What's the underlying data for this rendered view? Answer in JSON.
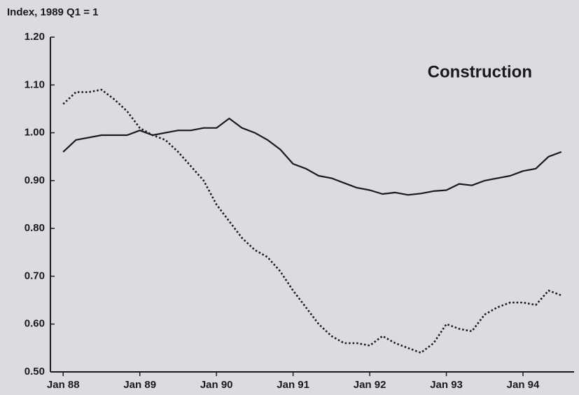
{
  "chart_data": {
    "type": "line",
    "annotation": "Construction",
    "ylabel": "Index, 1989 Q1 = 1",
    "x": [
      "1988-01",
      "1988-03",
      "1988-05",
      "1988-07",
      "1988-09",
      "1988-11",
      "1989-01",
      "1989-03",
      "1989-05",
      "1989-07",
      "1989-09",
      "1989-11",
      "1990-01",
      "1990-03",
      "1990-05",
      "1990-07",
      "1990-09",
      "1990-11",
      "1991-01",
      "1991-03",
      "1991-05",
      "1991-07",
      "1991-09",
      "1991-11",
      "1992-01",
      "1992-03",
      "1992-05",
      "1992-07",
      "1992-09",
      "1992-11",
      "1993-01",
      "1993-03",
      "1993-05",
      "1993-07",
      "1993-09",
      "1993-11",
      "1994-01",
      "1994-03",
      "1994-05",
      "1994-07"
    ],
    "series": [
      {
        "color": "#1a1a1a",
        "dash": "solid",
        "values": [
          0.96,
          0.985,
          0.99,
          0.995,
          0.995,
          0.995,
          1.005,
          0.995,
          1.0,
          1.005,
          1.005,
          1.01,
          1.01,
          1.03,
          1.01,
          1.0,
          0.985,
          0.965,
          0.935,
          0.925,
          0.91,
          0.905,
          0.895,
          0.885,
          0.88,
          0.872,
          0.875,
          0.87,
          0.873,
          0.878,
          0.88,
          0.893,
          0.89,
          0.9,
          0.905,
          0.91,
          0.92,
          0.925,
          0.95,
          0.96
        ]
      },
      {
        "color": "#1a1a1a",
        "dash": "dotted",
        "values": [
          1.06,
          1.085,
          1.085,
          1.09,
          1.07,
          1.045,
          1.01,
          0.995,
          0.985,
          0.96,
          0.93,
          0.9,
          0.85,
          0.815,
          0.78,
          0.755,
          0.74,
          0.71,
          0.67,
          0.635,
          0.6,
          0.575,
          0.56,
          0.56,
          0.555,
          0.575,
          0.56,
          0.55,
          0.54,
          0.56,
          0.6,
          0.59,
          0.585,
          0.62,
          0.635,
          0.645,
          0.645,
          0.64,
          0.67,
          0.66
        ]
      }
    ],
    "xlim": [
      "1987-11",
      "1994-09"
    ],
    "xticks": [
      {
        "value": "1988-01",
        "label": "Jan 88"
      },
      {
        "value": "1989-01",
        "label": "Jan 89"
      },
      {
        "value": "1990-01",
        "label": "Jan 90"
      },
      {
        "value": "1991-01",
        "label": "Jan 91"
      },
      {
        "value": "1992-01",
        "label": "Jan 92"
      },
      {
        "value": "1993-01",
        "label": "Jan 93"
      },
      {
        "value": "1994-01",
        "label": "Jan 94"
      }
    ],
    "ylim": [
      0.5,
      1.2
    ],
    "yticks": [
      {
        "value": 0.5,
        "label": "0.50"
      },
      {
        "value": 0.6,
        "label": "0.60"
      },
      {
        "value": 0.7,
        "label": "0.70"
      },
      {
        "value": 0.8,
        "label": "0.80"
      },
      {
        "value": 0.9,
        "label": "0.90"
      },
      {
        "value": 1.0,
        "label": "1.00"
      },
      {
        "value": 1.1,
        "label": "1.10"
      },
      {
        "value": 1.2,
        "label": "1.20"
      }
    ],
    "grid": false
  }
}
